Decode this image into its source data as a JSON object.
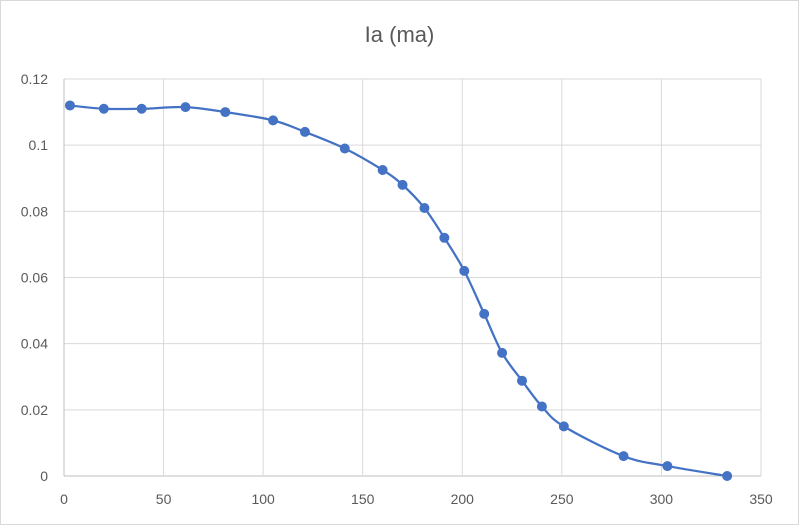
{
  "chart_data": {
    "type": "scatter",
    "title": "Ia (ma)",
    "xlabel": "",
    "ylabel": "",
    "xlim": [
      0,
      350
    ],
    "ylim": [
      0,
      0.12
    ],
    "x_ticks": [
      "0",
      "50",
      "100",
      "150",
      "200",
      "250",
      "300",
      "350"
    ],
    "y_ticks": [
      "0",
      "0.02",
      "0.04",
      "0.06",
      "0.08",
      "0.1",
      "0.12"
    ],
    "grid": true,
    "legend": "none",
    "series": [
      {
        "color": "#4472c4",
        "line": true,
        "markers": true,
        "x": [
          3,
          20,
          39,
          61,
          81,
          105,
          121,
          141,
          160,
          170,
          181,
          191,
          201,
          211,
          220,
          230,
          240,
          251,
          281,
          303,
          333
        ],
        "y": [
          0.112,
          0.111,
          0.111,
          0.1115,
          0.11,
          0.1075,
          0.104,
          0.099,
          0.0925,
          0.088,
          0.081,
          0.072,
          0.062,
          0.049,
          0.0372,
          0.0288,
          0.021,
          0.015,
          0.006,
          0.003,
          0.0
        ]
      }
    ]
  }
}
